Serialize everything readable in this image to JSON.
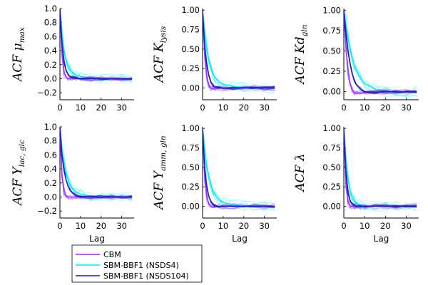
{
  "chart_data": [
    {
      "type": "line",
      "ylabel": "ACF μ_max",
      "ylabel_main": "ACF μ",
      "ylabel_sub": "max",
      "xlabel": "",
      "xlim": [
        0,
        36
      ],
      "ylim": [
        -0.3,
        1.0
      ],
      "xticks": [
        0,
        10,
        20,
        30
      ],
      "yticks": [
        -0.2,
        0.0,
        0.2,
        0.4,
        0.6,
        0.8,
        1.0
      ],
      "yticklabels": [
        "−0.2",
        "0.0",
        "0.2",
        "0.4",
        "0.6",
        "0.8",
        "1.0"
      ],
      "series": [
        {
          "name": "CBM",
          "lag": [
            0,
            1,
            2,
            3,
            4,
            5,
            6,
            8,
            10,
            15,
            20,
            25,
            30,
            35
          ],
          "acf": [
            1.0,
            0.35,
            0.08,
            0.02,
            0.0,
            0.0,
            0.01,
            0.0,
            0.0,
            0.0,
            0.0,
            0.0,
            0.0,
            0.0
          ]
        },
        {
          "name": "SBM-BBF1 (NSDS4)",
          "lag": [
            0,
            1,
            2,
            3,
            4,
            5,
            6,
            8,
            10,
            15,
            20,
            25,
            30,
            35
          ],
          "acf": [
            1.0,
            0.62,
            0.4,
            0.27,
            0.19,
            0.13,
            0.09,
            0.05,
            0.03,
            0.01,
            0.0,
            0.0,
            0.0,
            0.0
          ]
        },
        {
          "name": "SBM-BBF1 (NSDS104)",
          "lag": [
            0,
            1,
            2,
            3,
            4,
            5,
            6,
            8,
            10,
            15,
            20,
            25,
            30,
            35
          ],
          "acf": [
            1.0,
            0.5,
            0.25,
            0.12,
            0.06,
            0.03,
            0.02,
            0.01,
            0.0,
            0.0,
            0.0,
            0.0,
            0.0,
            0.0
          ]
        }
      ]
    },
    {
      "type": "line",
      "ylabel": "ACF K_lysis",
      "ylabel_main": "ACF K",
      "ylabel_sub": "lysis",
      "xlabel": "",
      "xlim": [
        0,
        36
      ],
      "ylim": [
        -0.15,
        1.02
      ],
      "xticks": [
        0,
        10,
        20,
        30
      ],
      "yticks": [
        0.0,
        0.25,
        0.5,
        0.75,
        1.0
      ],
      "yticklabels": [
        "0.00",
        "0.25",
        "0.50",
        "0.75",
        "1.00"
      ],
      "series": [
        {
          "name": "CBM",
          "lag": [
            0,
            1,
            2,
            3,
            4,
            5,
            6,
            8,
            10,
            15,
            20,
            25,
            30,
            35
          ],
          "acf": [
            1.0,
            0.45,
            0.15,
            0.04,
            0.0,
            -0.01,
            -0.01,
            0.0,
            0.0,
            0.0,
            0.0,
            0.0,
            0.0,
            0.0
          ]
        },
        {
          "name": "SBM-BBF1 (NSDS4)",
          "lag": [
            0,
            1,
            2,
            3,
            4,
            5,
            6,
            8,
            10,
            15,
            20,
            25,
            30,
            35
          ],
          "acf": [
            1.0,
            0.7,
            0.5,
            0.36,
            0.26,
            0.19,
            0.14,
            0.08,
            0.05,
            0.02,
            0.01,
            0.0,
            0.0,
            0.0
          ]
        },
        {
          "name": "SBM-BBF1 (NSDS104)",
          "lag": [
            0,
            1,
            2,
            3,
            4,
            5,
            6,
            8,
            10,
            15,
            20,
            25,
            30,
            35
          ],
          "acf": [
            1.0,
            0.55,
            0.3,
            0.16,
            0.08,
            0.04,
            0.02,
            0.01,
            0.0,
            0.0,
            0.0,
            0.0,
            0.0,
            0.0
          ]
        }
      ]
    },
    {
      "type": "line",
      "ylabel": "ACF Kd_gln",
      "ylabel_main": "ACF Kd",
      "ylabel_sub": "gln",
      "xlabel": "",
      "xlim": [
        0,
        36
      ],
      "ylim": [
        -0.1,
        1.02
      ],
      "xticks": [
        0,
        10,
        20,
        30
      ],
      "yticks": [
        0.0,
        0.25,
        0.5,
        0.75,
        1.0
      ],
      "yticklabels": [
        "0.00",
        "0.25",
        "0.50",
        "0.75",
        "1.00"
      ],
      "series": [
        {
          "name": "CBM",
          "lag": [
            0,
            1,
            2,
            3,
            4,
            5,
            6,
            8,
            10,
            15,
            20,
            25,
            30,
            35
          ],
          "acf": [
            1.0,
            0.55,
            0.25,
            0.09,
            0.02,
            -0.01,
            -0.02,
            -0.02,
            -0.01,
            0.0,
            0.0,
            0.0,
            0.0,
            0.0
          ]
        },
        {
          "name": "SBM-BBF1 (NSDS4)",
          "lag": [
            0,
            1,
            2,
            3,
            4,
            5,
            6,
            8,
            10,
            15,
            20,
            25,
            30,
            35
          ],
          "acf": [
            1.0,
            0.82,
            0.66,
            0.53,
            0.42,
            0.33,
            0.26,
            0.16,
            0.1,
            0.03,
            0.01,
            0.0,
            0.0,
            0.0
          ]
        },
        {
          "name": "SBM-BBF1 (NSDS104)",
          "lag": [
            0,
            1,
            2,
            3,
            4,
            5,
            6,
            8,
            10,
            15,
            20,
            25,
            30,
            35
          ],
          "acf": [
            1.0,
            0.72,
            0.5,
            0.34,
            0.22,
            0.14,
            0.09,
            0.03,
            0.0,
            -0.01,
            0.0,
            0.0,
            0.0,
            0.0
          ]
        }
      ]
    },
    {
      "type": "line",
      "ylabel": "ACF Y_lac,glc",
      "ylabel_main": "ACF Y",
      "ylabel_sub": "lac, glc",
      "xlabel": "Lag",
      "xlim": [
        0,
        36
      ],
      "ylim": [
        -0.3,
        1.0
      ],
      "xticks": [
        0,
        10,
        20,
        30
      ],
      "yticks": [
        -0.2,
        0.0,
        0.2,
        0.4,
        0.6,
        0.8,
        1.0
      ],
      "yticklabels": [
        "−0.2",
        "0.0",
        "0.2",
        "0.4",
        "0.6",
        "0.8",
        "1.0"
      ],
      "series": [
        {
          "name": "CBM",
          "lag": [
            0,
            1,
            2,
            3,
            4,
            5,
            6,
            8,
            10,
            15,
            20,
            25,
            30,
            35
          ],
          "acf": [
            1.0,
            0.3,
            0.06,
            0.01,
            0.0,
            0.0,
            0.0,
            0.0,
            0.0,
            0.0,
            0.0,
            0.0,
            0.0,
            0.0
          ]
        },
        {
          "name": "SBM-BBF1 (NSDS4)",
          "lag": [
            0,
            1,
            2,
            3,
            4,
            5,
            6,
            8,
            10,
            15,
            20,
            25,
            30,
            35
          ],
          "acf": [
            1.0,
            0.68,
            0.47,
            0.33,
            0.24,
            0.17,
            0.12,
            0.07,
            0.04,
            0.01,
            0.0,
            0.0,
            0.0,
            0.0
          ]
        },
        {
          "name": "SBM-BBF1 (NSDS104)",
          "lag": [
            0,
            1,
            2,
            3,
            4,
            5,
            6,
            8,
            10,
            15,
            20,
            25,
            30,
            35
          ],
          "acf": [
            1.0,
            0.6,
            0.38,
            0.24,
            0.15,
            0.09,
            0.06,
            0.02,
            0.01,
            0.0,
            0.0,
            0.0,
            0.0,
            0.0
          ]
        }
      ]
    },
    {
      "type": "line",
      "ylabel": "ACF Y_amm,gln",
      "ylabel_main": "ACF Y",
      "ylabel_sub": "amm, gln",
      "xlabel": "Lag",
      "xlim": [
        0,
        36
      ],
      "ylim": [
        -0.15,
        1.02
      ],
      "xticks": [
        0,
        10,
        20,
        30
      ],
      "yticks": [
        0.0,
        0.25,
        0.5,
        0.75,
        1.0
      ],
      "yticklabels": [
        "0.00",
        "0.25",
        "0.50",
        "0.75",
        "1.00"
      ],
      "series": [
        {
          "name": "CBM",
          "lag": [
            0,
            1,
            2,
            3,
            4,
            5,
            6,
            8,
            10,
            15,
            20,
            25,
            30,
            35
          ],
          "acf": [
            1.0,
            0.4,
            0.12,
            0.03,
            0.0,
            -0.01,
            0.0,
            0.0,
            0.0,
            0.0,
            0.0,
            0.0,
            0.0,
            0.0
          ]
        },
        {
          "name": "SBM-BBF1 (NSDS4)",
          "lag": [
            0,
            1,
            2,
            3,
            4,
            5,
            6,
            8,
            10,
            15,
            20,
            25,
            30,
            35
          ],
          "acf": [
            1.0,
            0.72,
            0.52,
            0.38,
            0.28,
            0.2,
            0.15,
            0.08,
            0.05,
            0.02,
            0.01,
            0.0,
            0.0,
            0.0
          ]
        },
        {
          "name": "SBM-BBF1 (NSDS104)",
          "lag": [
            0,
            1,
            2,
            3,
            4,
            5,
            6,
            8,
            10,
            15,
            20,
            25,
            30,
            35
          ],
          "acf": [
            1.0,
            0.5,
            0.26,
            0.13,
            0.06,
            0.03,
            0.01,
            0.0,
            0.0,
            0.0,
            0.0,
            0.0,
            0.0,
            0.0
          ]
        }
      ]
    },
    {
      "type": "line",
      "ylabel": "ACF λ",
      "ylabel_main": "ACF λ",
      "ylabel_sub": "",
      "xlabel": "Lag",
      "xlim": [
        0,
        36
      ],
      "ylim": [
        -0.15,
        1.02
      ],
      "xticks": [
        0,
        10,
        20,
        30
      ],
      "yticks": [
        0.0,
        0.25,
        0.5,
        0.75,
        1.0
      ],
      "yticklabels": [
        "0.00",
        "0.25",
        "0.50",
        "0.75",
        "1.00"
      ],
      "series": [
        {
          "name": "CBM",
          "lag": [
            0,
            1,
            2,
            3,
            4,
            5,
            6,
            8,
            10,
            15,
            20,
            25,
            30,
            35
          ],
          "acf": [
            1.0,
            0.3,
            0.05,
            0.0,
            0.0,
            0.0,
            0.0,
            0.0,
            0.0,
            0.0,
            0.0,
            0.0,
            0.0,
            0.0
          ]
        },
        {
          "name": "SBM-BBF1 (NSDS4)",
          "lag": [
            0,
            1,
            2,
            3,
            4,
            5,
            6,
            8,
            10,
            15,
            20,
            25,
            30,
            35
          ],
          "acf": [
            1.0,
            0.6,
            0.35,
            0.2,
            0.12,
            0.07,
            0.04,
            0.02,
            0.01,
            0.0,
            0.0,
            0.0,
            0.0,
            0.0
          ]
        },
        {
          "name": "SBM-BBF1 (NSDS104)",
          "lag": [
            0,
            1,
            2,
            3,
            4,
            5,
            6,
            8,
            10,
            15,
            20,
            25,
            30,
            35
          ],
          "acf": [
            1.0,
            0.45,
            0.18,
            0.07,
            0.03,
            0.01,
            0.0,
            0.0,
            0.0,
            0.0,
            0.0,
            0.0,
            0.0,
            0.0
          ]
        }
      ]
    }
  ],
  "legend": {
    "placement": "bottom-left",
    "entries": [
      {
        "label": "CBM",
        "color": "#9b30ff"
      },
      {
        "label": "SBM-BBF1 (NSDS4)",
        "color": "#00e5ee"
      },
      {
        "label": "SBM-BBF1 (NSDS104)",
        "color": "#1f1fb4"
      }
    ]
  }
}
